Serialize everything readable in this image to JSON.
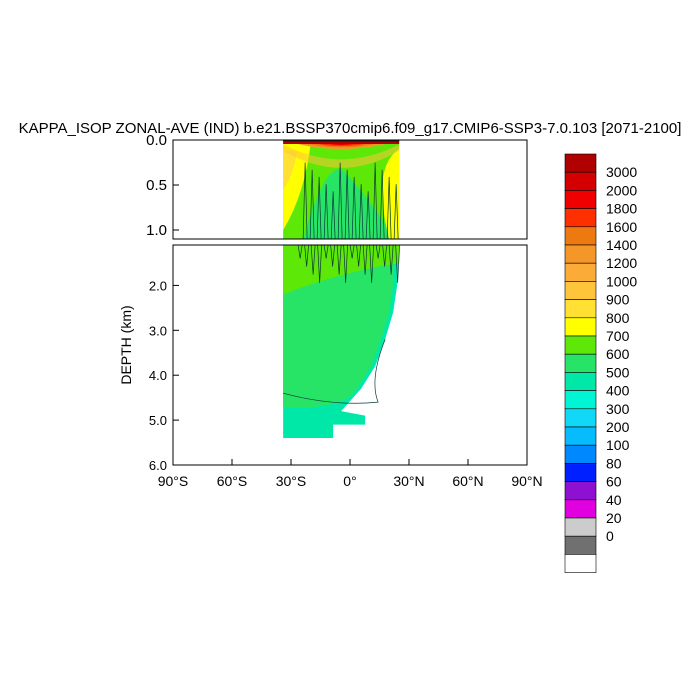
{
  "chart_data": {
    "type": "heatmap",
    "title": "KAPPA_ISOP ZONAL-AVE (IND) b.e21.BSSP370cmip6.f09_g17.CMIP6-SSP3-7.0.103 [2071-2100]",
    "ylabel": "DEPTH (km)",
    "xlabel": "",
    "x_ticks": [
      "90°S",
      "60°S",
      "30°S",
      "0°",
      "30°N",
      "60°N",
      "90°N"
    ],
    "x_tick_values": [
      -90,
      -60,
      -30,
      0,
      30,
      60,
      90
    ],
    "xlim": [
      -90,
      90
    ],
    "upper_panel": {
      "ylim": [
        0,
        1.1
      ],
      "y_ticks": [
        "0.0",
        "0.5",
        "1.0"
      ],
      "y_tick_values": [
        0,
        0.5,
        1.0
      ]
    },
    "lower_panel": {
      "ylim": [
        1.1,
        6.0
      ],
      "y_ticks": [
        "2.0",
        "3.0",
        "4.0",
        "5.0",
        "6.0"
      ],
      "y_tick_values": [
        2,
        3,
        4,
        5,
        6
      ]
    },
    "grid": false,
    "legend": "right",
    "colorbar": {
      "labels": [
        "3000",
        "2000",
        "1800",
        "1600",
        "1400",
        "1200",
        "1000",
        "900",
        "800",
        "700",
        "600",
        "500",
        "400",
        "300",
        "200",
        "100",
        "80",
        "60",
        "40",
        "20",
        "0"
      ],
      "colors": [
        "#b00000",
        "#d40000",
        "#f00000",
        "#ff3000",
        "#ec7a10",
        "#f59628",
        "#fbab38",
        "#fec43a",
        "#ffe033",
        "#ffff00",
        "#5ee808",
        "#28e466",
        "#00e8a8",
        "#00f5d5",
        "#12d8f8",
        "#06bcff",
        "#0088ff",
        "#0020ff",
        "#8e10d0",
        "#e000e0",
        "#cccccc",
        "#707070",
        "#ffffff"
      ]
    },
    "fields": {
      "lat_range": [
        -34,
        25
      ],
      "surface_max": "3000",
      "upper_interior": "600",
      "deep_interior": "500",
      "bottom_edge": "400",
      "max_depth_km": 5.4
    }
  }
}
